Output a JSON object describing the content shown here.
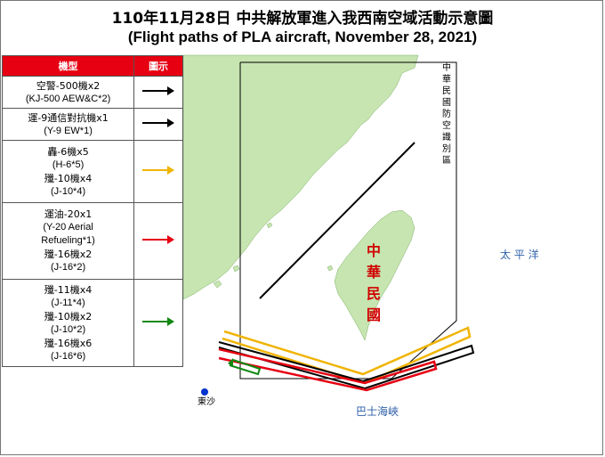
{
  "title": {
    "zh": "110年11月28日 中共解放軍進入我西南空域活動示意圖",
    "en": "(Flight paths of PLA aircraft, November 28, 2021)"
  },
  "legend": {
    "header_aircraft": "機型",
    "header_symbol": "圖示",
    "groups": [
      {
        "lines": [
          "空警-500機x2",
          "(KJ-500 AEW&C*2)"
        ],
        "color": "#000000"
      },
      {
        "lines": [
          "運-9通信對抗機x1",
          "(Y-9 EW*1)"
        ],
        "color": "#000000"
      },
      {
        "lines": [
          "轟-6機x5",
          "(H-6*5)",
          "殲-10機x4",
          "(J-10*4)"
        ],
        "color": "#f0b400"
      },
      {
        "lines": [
          "運油-20x1",
          "(Y-20 Aerial",
          "Refueling*1)",
          "殲-16機x2",
          "(J-16*2)"
        ],
        "color": "#e60012"
      },
      {
        "lines": [
          "殲-11機x4",
          "(J-11*4)",
          "殲-10機x2",
          "(J-10*2)",
          "殲-16機x6",
          "(J-16*6)"
        ],
        "color": "#118811"
      }
    ]
  },
  "map": {
    "adiz_label": "中華民國防空識別區",
    "roc_label": "中華民國",
    "pacific_label": "太 平 洋",
    "bashi_label": "巴士海峽",
    "dongsha_label": "東沙",
    "land_color": "#c6e5b0",
    "sea_label_color": "#2e5fa8"
  }
}
